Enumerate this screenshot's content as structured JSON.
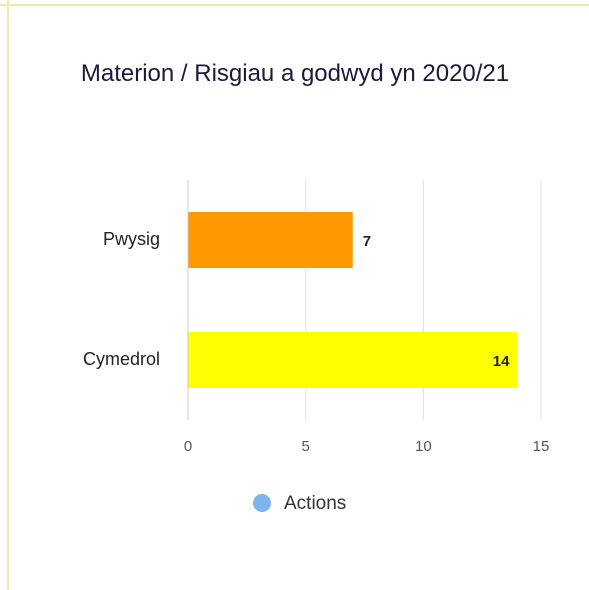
{
  "chart_data": {
    "type": "bar",
    "orientation": "horizontal",
    "title": "Materion / Risgiau a godwyd yn 2020/21",
    "categories": [
      "Pwysig",
      "Cymedrol"
    ],
    "series": [
      {
        "name": "Actions",
        "color": "#7cb5ec",
        "values": [
          7,
          14
        ],
        "bar_colors": [
          "#ff9900",
          "#ffff00"
        ]
      }
    ],
    "xlim": [
      0,
      15
    ],
    "xticks": [
      0,
      5,
      10,
      15
    ],
    "grid": true,
    "legend": "bottom"
  }
}
